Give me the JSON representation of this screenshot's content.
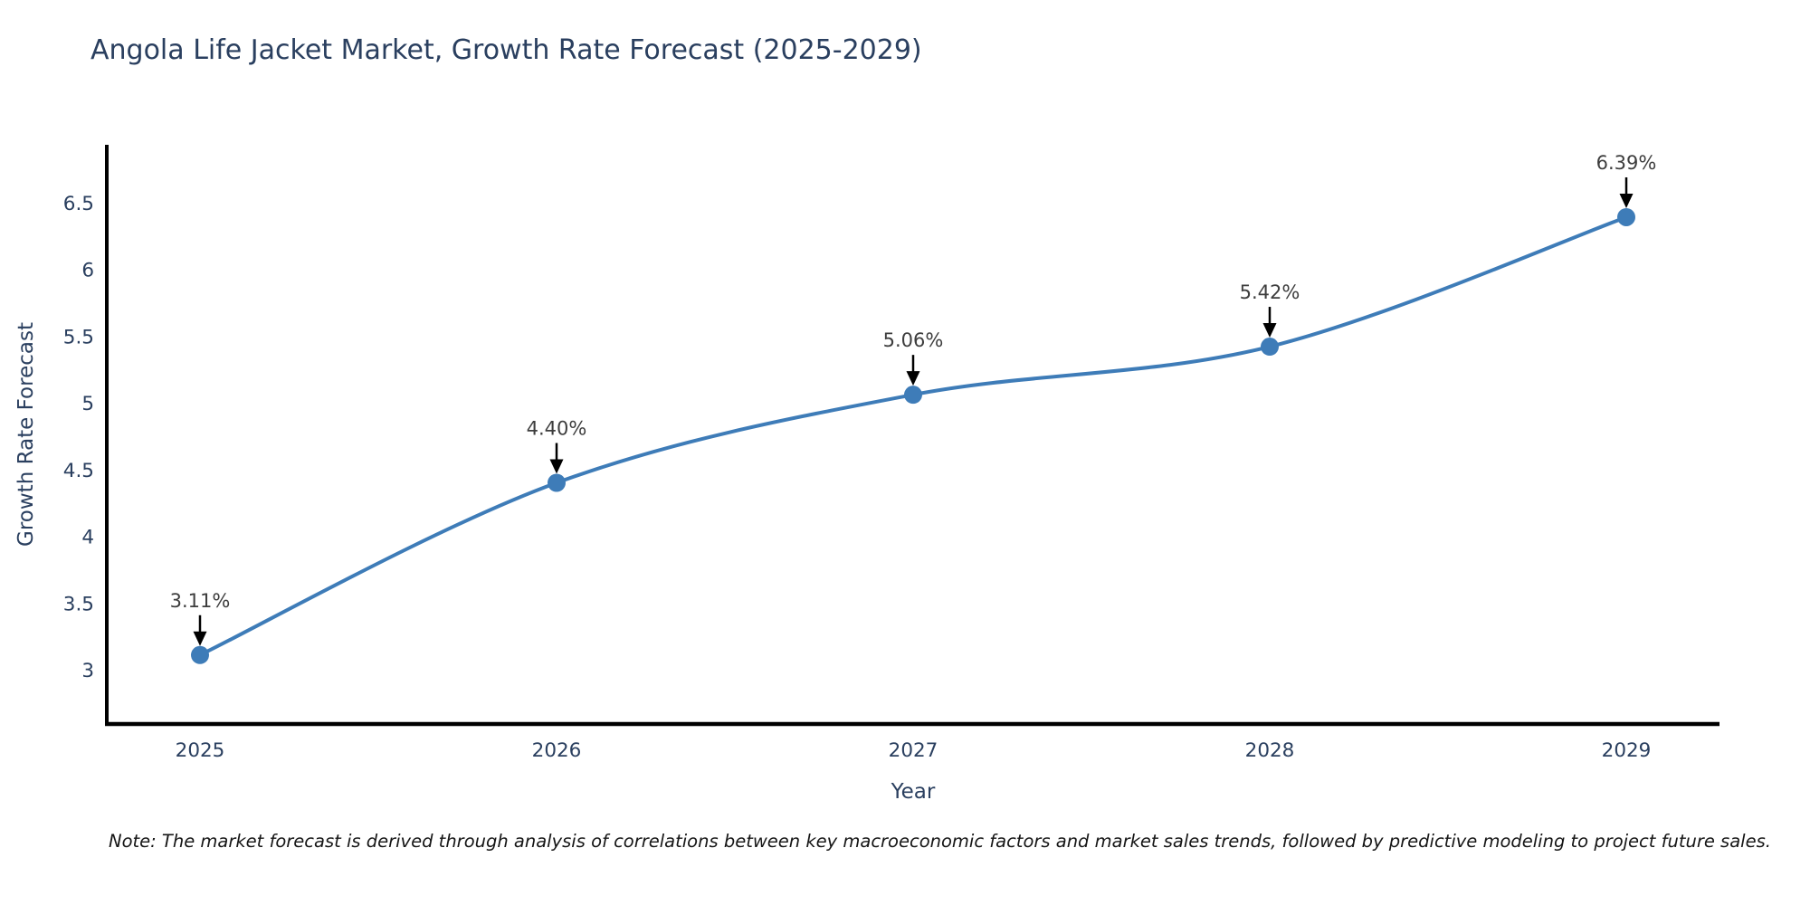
{
  "chart": {
    "title": "Angola Life Jacket Market, Growth Rate Forecast (2025-2029)",
    "note": "Note: The market forecast is derived through analysis of correlations between key macroeconomic factors and market sales trends, followed by predictive modeling to project future sales."
  },
  "chart_data": {
    "type": "line",
    "line_shape": "spline",
    "x": [
      2025,
      2026,
      2027,
      2028,
      2029
    ],
    "values": [
      3.11,
      4.4,
      5.06,
      5.42,
      6.39
    ],
    "point_labels": [
      "3.11%",
      "4.40%",
      "5.06%",
      "5.42%",
      "6.39%"
    ],
    "series_name": "Growth Rate Forecast",
    "title": "Angola Life Jacket Market, Growth Rate Forecast (2025-2029)",
    "xlabel": "Year",
    "ylabel": "Growth Rate Forecast",
    "x_ticks": [
      "2025",
      "2026",
      "2027",
      "2028",
      "2029"
    ],
    "y_ticks": [
      3,
      3.5,
      4,
      4.5,
      5,
      5.5,
      6,
      6.5
    ],
    "ylim": [
      2.6,
      6.95
    ],
    "grid": false,
    "legend": "none",
    "markers": true,
    "annotations_have_arrows": true,
    "colors": {
      "line": "#3e7cb8",
      "marker": "#3e7cb8",
      "annotation_text": "#3d3d3d",
      "arrow": "#000000",
      "axis_line": "#000000",
      "tick_label": "#2a3f5f",
      "axis_title": "#2a3f5f",
      "title": "#2a3f5f",
      "note_text": "#161616",
      "background": "#ffffff"
    }
  }
}
